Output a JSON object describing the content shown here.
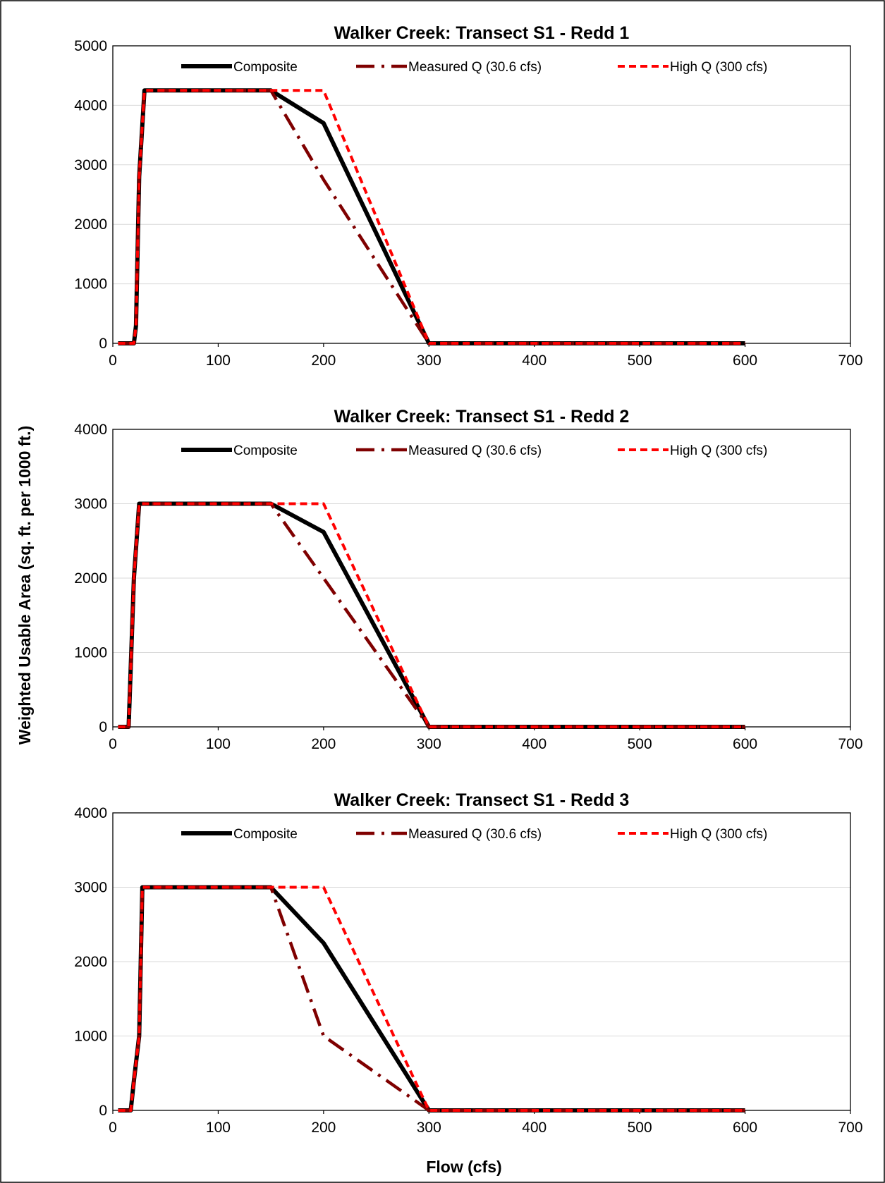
{
  "figure": {
    "ylabel": "Weighted Usable Area (sq. ft. per 1000 ft.)",
    "xlabel": "Flow (cfs)"
  },
  "chart_data": [
    {
      "type": "line",
      "title": "Walker Creek: Transect S1 - Redd 1",
      "xlim": [
        0,
        700
      ],
      "ylim": [
        0,
        5000
      ],
      "xticks": [
        0,
        100,
        200,
        300,
        400,
        500,
        600,
        700
      ],
      "yticks": [
        0,
        1000,
        2000,
        3000,
        4000,
        5000
      ],
      "grid": "horizontal",
      "legend": "top",
      "series": [
        {
          "name": "Composite",
          "color": "#000000",
          "style": "solid",
          "x": [
            5,
            20,
            22,
            25,
            30,
            150,
            200,
            300,
            600
          ],
          "y": [
            0,
            0,
            300,
            2800,
            4250,
            4250,
            3700,
            0,
            0
          ]
        },
        {
          "name": "Measured Q (30.6 cfs)",
          "color": "#7f0000",
          "style": "dash-dot",
          "x": [
            5,
            20,
            22,
            25,
            30,
            150,
            200,
            300,
            600
          ],
          "y": [
            0,
            0,
            300,
            2800,
            4250,
            4250,
            2750,
            0,
            0
          ]
        },
        {
          "name": "High Q (300 cfs)",
          "color": "#ff0000",
          "style": "dashed",
          "x": [
            5,
            20,
            22,
            25,
            30,
            150,
            200,
            300,
            600
          ],
          "y": [
            0,
            0,
            300,
            2800,
            4250,
            4250,
            4250,
            0,
            0
          ]
        }
      ]
    },
    {
      "type": "line",
      "title": "Walker Creek: Transect S1 - Redd 2",
      "xlim": [
        0,
        700
      ],
      "ylim": [
        0,
        4000
      ],
      "xticks": [
        0,
        100,
        200,
        300,
        400,
        500,
        600,
        700
      ],
      "yticks": [
        0,
        1000,
        2000,
        3000,
        4000
      ],
      "grid": "horizontal",
      "legend": "top",
      "series": [
        {
          "name": "Composite",
          "color": "#000000",
          "style": "solid",
          "x": [
            5,
            15,
            20,
            25,
            150,
            200,
            300,
            600
          ],
          "y": [
            0,
            0,
            2000,
            3000,
            3000,
            2620,
            0,
            0
          ]
        },
        {
          "name": "Measured Q (30.6 cfs)",
          "color": "#7f0000",
          "style": "dash-dot",
          "x": [
            5,
            15,
            20,
            25,
            150,
            200,
            300,
            600
          ],
          "y": [
            0,
            0,
            2000,
            3000,
            3000,
            2000,
            0,
            0
          ]
        },
        {
          "name": "High Q (300 cfs)",
          "color": "#ff0000",
          "style": "dashed",
          "x": [
            5,
            15,
            20,
            25,
            150,
            200,
            300,
            600
          ],
          "y": [
            0,
            0,
            2000,
            3000,
            3000,
            3000,
            0,
            0
          ]
        }
      ]
    },
    {
      "type": "line",
      "title": "Walker Creek: Transect S1 - Redd 3",
      "xlim": [
        0,
        700
      ],
      "ylim": [
        0,
        4000
      ],
      "xticks": [
        0,
        100,
        200,
        300,
        400,
        500,
        600,
        700
      ],
      "yticks": [
        0,
        1000,
        2000,
        3000,
        4000
      ],
      "grid": "horizontal",
      "legend": "top",
      "series": [
        {
          "name": "Composite",
          "color": "#000000",
          "style": "solid",
          "x": [
            5,
            17,
            20,
            25,
            28,
            150,
            200,
            300,
            600
          ],
          "y": [
            0,
            0,
            400,
            1000,
            3000,
            3000,
            2250,
            0,
            0
          ]
        },
        {
          "name": "Measured Q (30.6 cfs)",
          "color": "#7f0000",
          "style": "dash-dot",
          "x": [
            5,
            17,
            20,
            25,
            28,
            150,
            200,
            300,
            600
          ],
          "y": [
            0,
            0,
            400,
            1000,
            3000,
            3000,
            1000,
            0,
            0
          ]
        },
        {
          "name": "High Q (300 cfs)",
          "color": "#ff0000",
          "style": "dashed",
          "x": [
            5,
            17,
            20,
            25,
            28,
            150,
            200,
            300,
            600
          ],
          "y": [
            0,
            0,
            400,
            1000,
            3000,
            3000,
            3000,
            0,
            0
          ]
        }
      ]
    }
  ]
}
